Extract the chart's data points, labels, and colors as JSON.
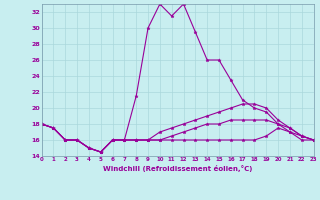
{
  "xlabel": "Windchill (Refroidissement éolien,°C)",
  "background_color": "#c8eef0",
  "grid_color": "#aad8dc",
  "line_color": "#990099",
  "xmin": 0,
  "xmax": 23,
  "ymin": 14,
  "ymax": 33,
  "yticks": [
    14,
    16,
    18,
    20,
    22,
    24,
    26,
    28,
    30,
    32
  ],
  "xticks": [
    0,
    1,
    2,
    3,
    4,
    5,
    6,
    7,
    8,
    9,
    10,
    11,
    12,
    13,
    14,
    15,
    16,
    17,
    18,
    19,
    20,
    21,
    22,
    23
  ],
  "series": [
    [
      18,
      17.5,
      16,
      16,
      15,
      14.5,
      16,
      16,
      21.5,
      30,
      33,
      31.5,
      33,
      29.5,
      26,
      26,
      23.5,
      21,
      20,
      19.5,
      18,
      17,
      16.5,
      16
    ],
    [
      18,
      17.5,
      16,
      16,
      15,
      14.5,
      16,
      16,
      16,
      16,
      17,
      17.5,
      18,
      18.5,
      19,
      19.5,
      20,
      20.5,
      20.5,
      20,
      18.5,
      17.5,
      16.5,
      16
    ],
    [
      18,
      17.5,
      16,
      16,
      15,
      14.5,
      16,
      16,
      16,
      16,
      16,
      16.5,
      17,
      17.5,
      18,
      18,
      18.5,
      18.5,
      18.5,
      18.5,
      18,
      17.5,
      16.5,
      16
    ],
    [
      18,
      17.5,
      16,
      16,
      15,
      14.5,
      16,
      16,
      16,
      16,
      16,
      16,
      16,
      16,
      16,
      16,
      16,
      16,
      16,
      16.5,
      17.5,
      17,
      16,
      16
    ]
  ]
}
